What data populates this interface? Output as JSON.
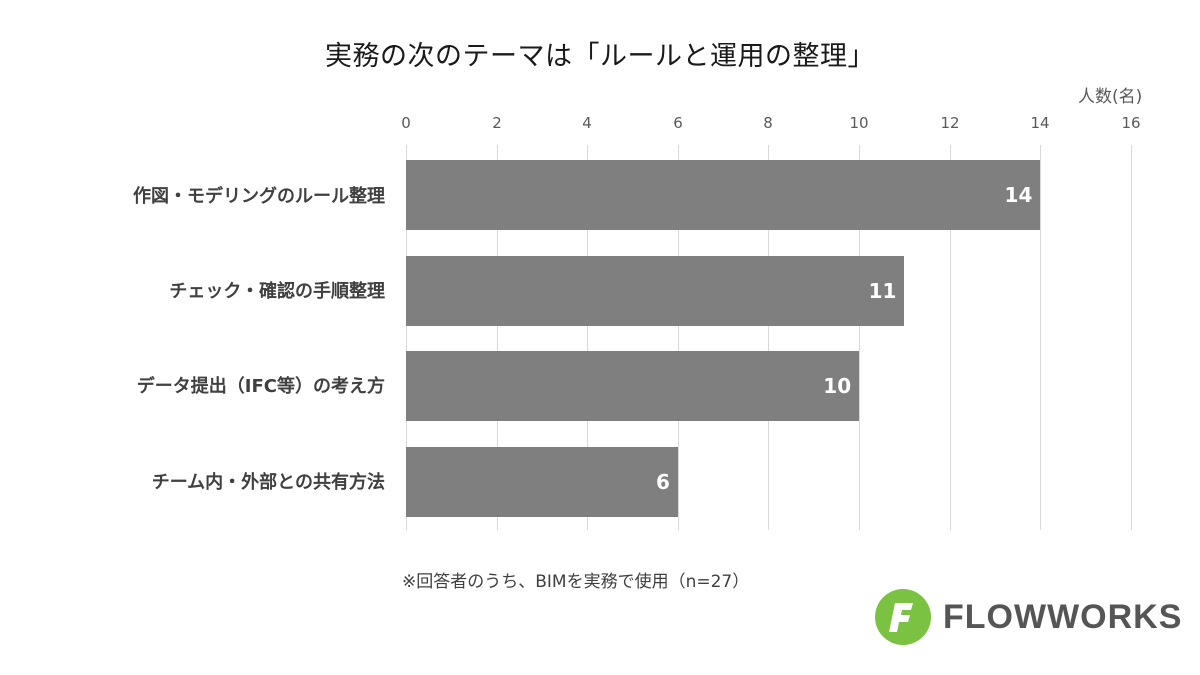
{
  "chart_data": {
    "type": "bar",
    "orientation": "horizontal",
    "title": "実務の次のテーマは「ルールと運用の整理」",
    "xlabel": "人数(名)",
    "ylabel": "",
    "xlim": [
      0,
      16
    ],
    "x_ticks": [
      "0",
      "2",
      "4",
      "6",
      "8",
      "10",
      "12",
      "14",
      "16"
    ],
    "grid": true,
    "categories": [
      "作図・モデリングのルール整理",
      "チェック・確認の手順整理",
      "データ提出（IFC等）の考え方",
      "チーム内・外部との共有方法"
    ],
    "values": [
      14,
      11,
      10,
      6
    ],
    "data_labels": [
      "14",
      "11",
      "10",
      "6"
    ],
    "bar_color": "#7f7f7f",
    "legend": null,
    "footnote": "※回答者のうち、BIMを実務で使用（n=27）"
  },
  "branding": {
    "logo_letter": "F",
    "logo_text": "FLOWWORKS",
    "logo_color": "#7cc242",
    "text_color": "#555555"
  }
}
